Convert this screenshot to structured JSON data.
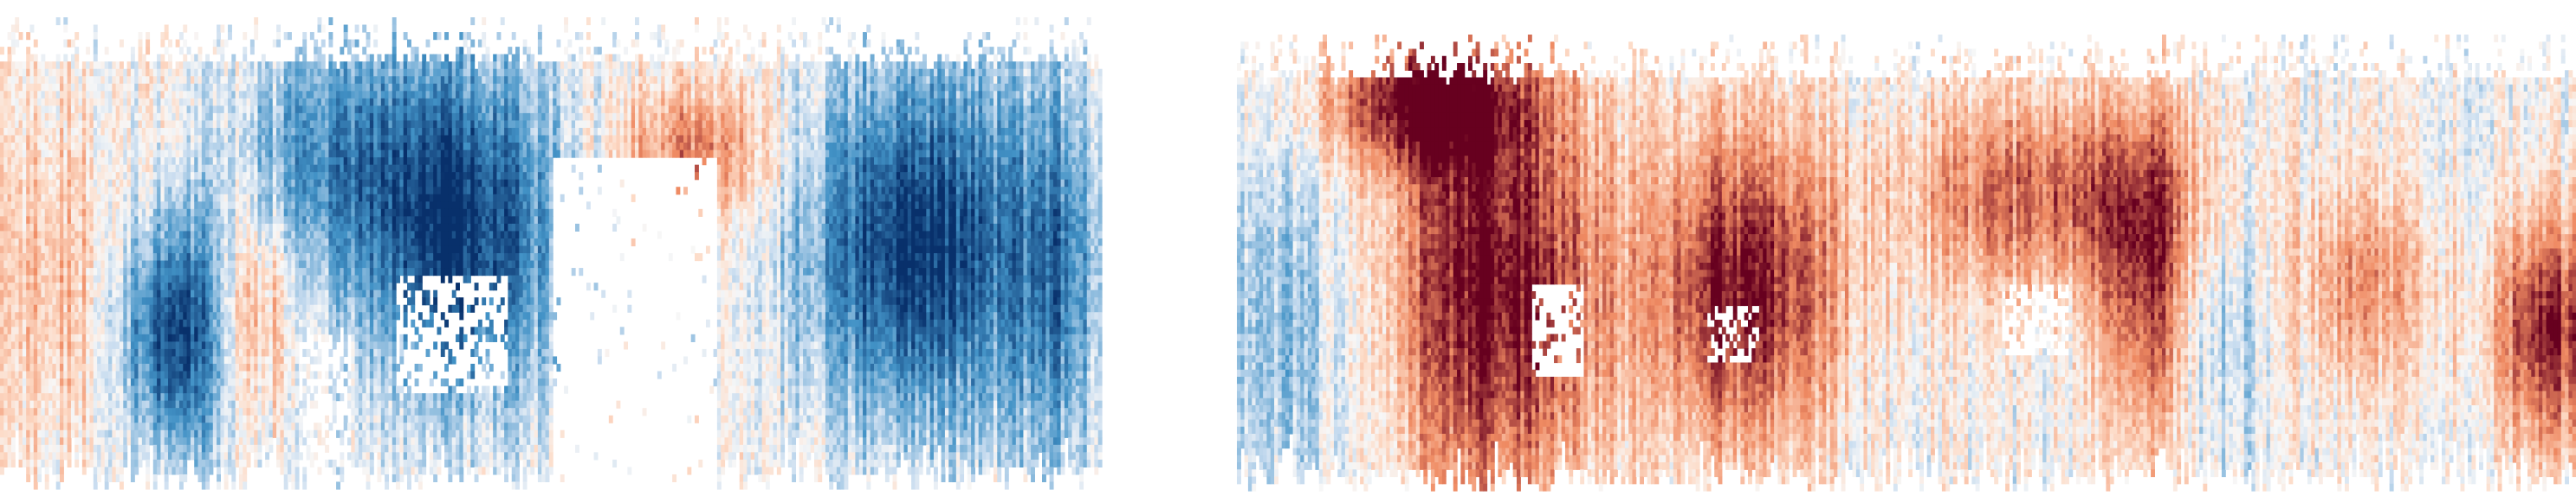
{
  "chart_data": [
    {
      "type": "heatmap",
      "title": "",
      "xlabel": "",
      "ylabel": "",
      "colormap": "RdBu_r",
      "value_range": [
        -1,
        1
      ],
      "grid": false,
      "legend": "none",
      "colors": {
        "strong_negative": "#08306b",
        "negative": "#4292c6",
        "weak_negative": "#c6dbef",
        "neutral": "#f7f7f7",
        "weak_positive": "#fddbc7",
        "positive": "#ef8a62",
        "strong_positive": "#67001f"
      },
      "features": [
        {
          "x": 0.05,
          "y": 0.55,
          "sx": 0.04,
          "sy": 0.3,
          "a": 0.35
        },
        {
          "x": 0.16,
          "y": 0.67,
          "sx": 0.035,
          "sy": 0.18,
          "a": -0.95
        },
        {
          "x": 0.23,
          "y": 0.62,
          "sx": 0.025,
          "sy": 0.15,
          "a": 0.45
        },
        {
          "x": 0.3,
          "y": 0.3,
          "sx": 0.06,
          "sy": 0.18,
          "a": -0.5
        },
        {
          "x": 0.42,
          "y": 0.45,
          "sx": 0.06,
          "sy": 0.25,
          "a": -1.0
        },
        {
          "x": 0.63,
          "y": 0.28,
          "sx": 0.05,
          "sy": 0.1,
          "a": 0.55
        },
        {
          "x": 0.83,
          "y": 0.48,
          "sx": 0.07,
          "sy": 0.26,
          "a": -1.0
        },
        {
          "x": 0.96,
          "y": 0.55,
          "sx": 0.03,
          "sy": 0.3,
          "a": -0.55
        }
      ]
    },
    {
      "type": "heatmap",
      "title": "",
      "xlabel": "",
      "ylabel": "",
      "colormap": "RdBu_r",
      "value_range": [
        -1,
        1
      ],
      "grid": false,
      "legend": "none",
      "colors": {
        "strong_negative": "#08306b",
        "negative": "#4292c6",
        "weak_negative": "#c6dbef",
        "neutral": "#f7f7f7",
        "weak_positive": "#fddbc7",
        "positive": "#ef8a62",
        "strong_positive": "#67001f"
      },
      "features": [
        {
          "x": 0.03,
          "y": 0.65,
          "sx": 0.05,
          "sy": 0.3,
          "a": -0.35
        },
        {
          "x": 0.14,
          "y": 0.15,
          "sx": 0.05,
          "sy": 0.1,
          "a": 0.95
        },
        {
          "x": 0.19,
          "y": 0.55,
          "sx": 0.06,
          "sy": 0.35,
          "a": 1.0
        },
        {
          "x": 0.38,
          "y": 0.55,
          "sx": 0.05,
          "sy": 0.25,
          "a": 0.95
        },
        {
          "x": 0.6,
          "y": 0.35,
          "sx": 0.07,
          "sy": 0.15,
          "a": 0.65
        },
        {
          "x": 0.68,
          "y": 0.55,
          "sx": 0.025,
          "sy": 0.28,
          "a": 0.85
        },
        {
          "x": 0.73,
          "y": 0.65,
          "sx": 0.03,
          "sy": 0.2,
          "a": -0.3
        },
        {
          "x": 0.84,
          "y": 0.55,
          "sx": 0.04,
          "sy": 0.15,
          "a": 0.45
        },
        {
          "x": 0.98,
          "y": 0.65,
          "sx": 0.03,
          "sy": 0.18,
          "a": 0.9
        }
      ]
    }
  ]
}
